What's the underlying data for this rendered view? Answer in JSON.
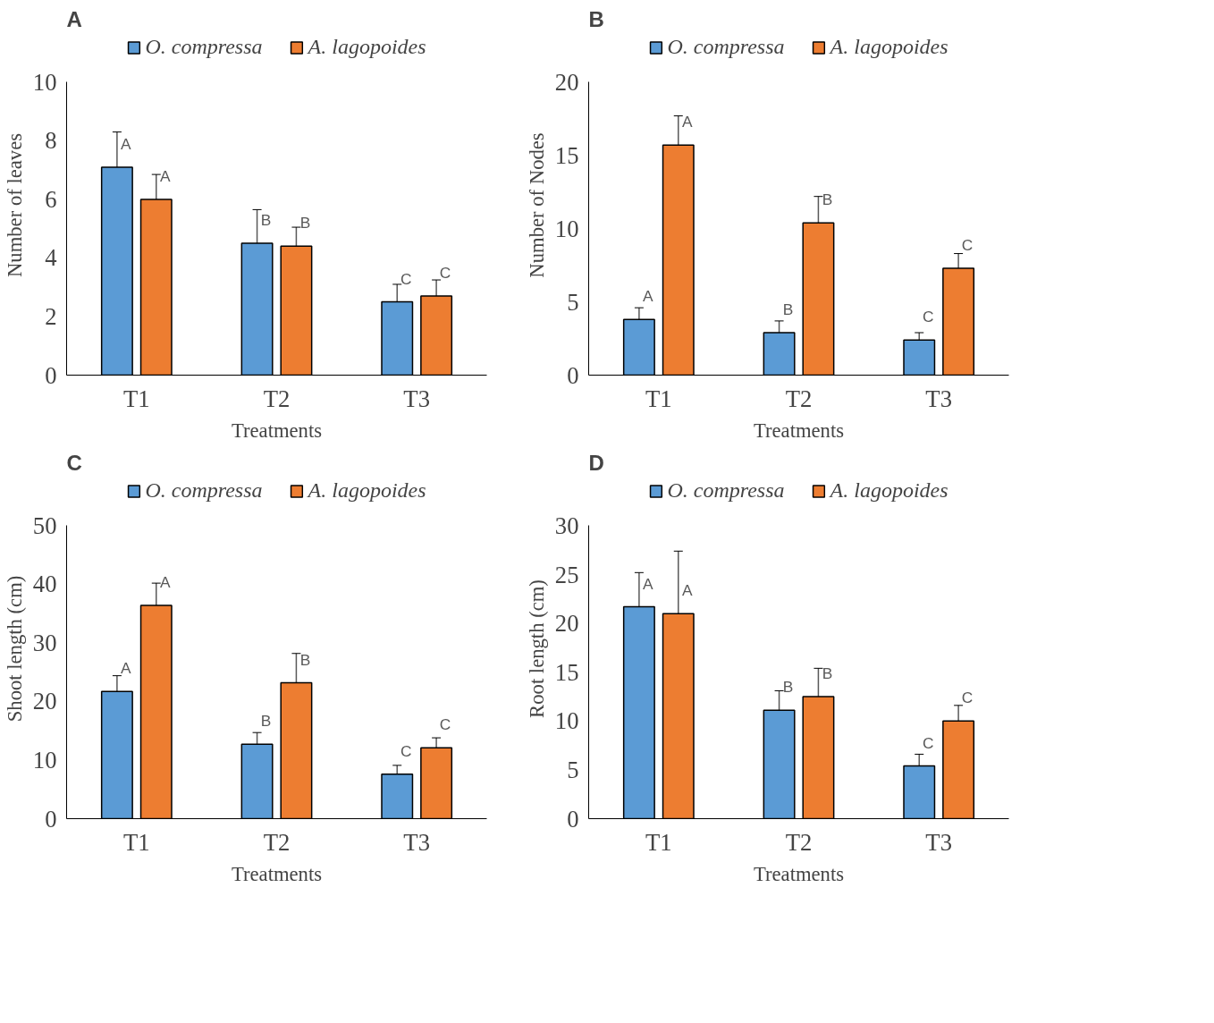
{
  "chart_data": [
    {
      "type": "bar",
      "title": "A",
      "xlabel": "Treatments",
      "ylabel": "Number of leaves",
      "categories": [
        "T1",
        "T2",
        "T3"
      ],
      "ylim": [
        0,
        10
      ],
      "yticks": [
        0,
        2,
        4,
        6,
        8,
        10
      ],
      "grid": false,
      "legend": "top",
      "series": [
        {
          "name": "O. compressa",
          "color": "#5b9bd5",
          "values": [
            7.1,
            4.5,
            2.5
          ],
          "errors": [
            1.2,
            1.15,
            0.6
          ],
          "value_labels": [
            "A",
            "B",
            "C"
          ]
        },
        {
          "name": "A. lagopoides",
          "color": "#ed7d31",
          "values": [
            6.0,
            4.4,
            2.7
          ],
          "errors": [
            0.85,
            0.65,
            0.55
          ],
          "value_labels": [
            "A",
            "B",
            "C"
          ]
        }
      ]
    },
    {
      "type": "bar",
      "title": "B",
      "xlabel": "Treatments",
      "ylabel": "Number of Nodes",
      "categories": [
        "T1",
        "T2",
        "T3"
      ],
      "ylim": [
        0,
        20
      ],
      "yticks": [
        0,
        5,
        10,
        15,
        20
      ],
      "grid": false,
      "legend": "top",
      "series": [
        {
          "name": "O. compressa",
          "color": "#5b9bd5",
          "values": [
            3.8,
            2.9,
            2.4
          ],
          "errors": [
            0.8,
            0.8,
            0.5
          ],
          "value_labels": [
            "A",
            "B",
            "C"
          ]
        },
        {
          "name": "A. lagopoides",
          "color": "#ed7d31",
          "values": [
            15.7,
            10.4,
            7.3
          ],
          "errors": [
            2.0,
            1.8,
            1.0
          ],
          "value_labels": [
            "A",
            "B",
            "C"
          ]
        }
      ]
    },
    {
      "type": "bar",
      "title": "C",
      "xlabel": "Treatments",
      "ylabel": "Shoot length (cm)",
      "categories": [
        "T1",
        "T2",
        "T3"
      ],
      "ylim": [
        0,
        50
      ],
      "yticks": [
        0,
        10,
        20,
        30,
        40,
        50
      ],
      "grid": false,
      "legend": "top",
      "series": [
        {
          "name": "O. compressa",
          "color": "#5b9bd5",
          "values": [
            21.7,
            12.7,
            7.6
          ],
          "errors": [
            2.7,
            2.0,
            1.5
          ],
          "value_labels": [
            "A",
            "B",
            "C"
          ]
        },
        {
          "name": "A. lagopoides",
          "color": "#ed7d31",
          "values": [
            36.4,
            23.2,
            12.1
          ],
          "errors": [
            3.8,
            5.0,
            1.7
          ],
          "value_labels": [
            "A",
            "B",
            "C"
          ]
        }
      ]
    },
    {
      "type": "bar",
      "title": "D",
      "xlabel": "Treatments",
      "ylabel": "Root length (cm)",
      "categories": [
        "T1",
        "T2",
        "T3"
      ],
      "ylim": [
        0,
        30
      ],
      "yticks": [
        0,
        5,
        10,
        15,
        20,
        25,
        30
      ],
      "grid": false,
      "legend": "top",
      "series": [
        {
          "name": "O. compressa",
          "color": "#5b9bd5",
          "values": [
            21.7,
            11.1,
            5.4
          ],
          "errors": [
            3.5,
            2.0,
            1.2
          ],
          "value_labels": [
            "A",
            "B",
            "C"
          ]
        },
        {
          "name": "A. lagopoides",
          "color": "#ed7d31",
          "values": [
            21.0,
            12.5,
            10.0
          ],
          "errors": [
            6.4,
            2.9,
            1.6
          ],
          "value_labels": [
            "A",
            "B",
            "C"
          ]
        }
      ]
    }
  ]
}
